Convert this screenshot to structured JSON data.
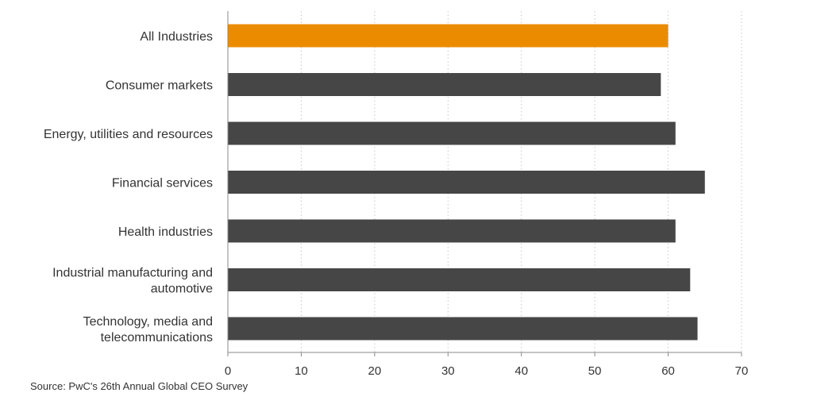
{
  "chart_data": {
    "type": "bar",
    "orientation": "horizontal",
    "categories": [
      [
        "All Industries"
      ],
      [
        "Consumer markets"
      ],
      [
        "Energy, utilities and resources"
      ],
      [
        "Financial services"
      ],
      [
        "Health industries"
      ],
      [
        "Industrial manufacturing and",
        "automotive"
      ],
      [
        "Technology, media and",
        "telecommunications"
      ]
    ],
    "values": [
      60,
      59,
      61,
      65,
      61,
      63,
      64
    ],
    "highlight_index": 0,
    "colors": {
      "highlight": "#EB8C00",
      "bar": "#464646",
      "grid": "#C8C8C8",
      "axis": "#888888"
    },
    "xlim": [
      0,
      70
    ],
    "xticks": [
      0,
      10,
      20,
      30,
      40,
      50,
      60,
      70
    ],
    "grid": "vertical dotted",
    "title": "",
    "xlabel": "",
    "ylabel": ""
  },
  "source": "Source: PwC's 26th Annual Global CEO Survey"
}
